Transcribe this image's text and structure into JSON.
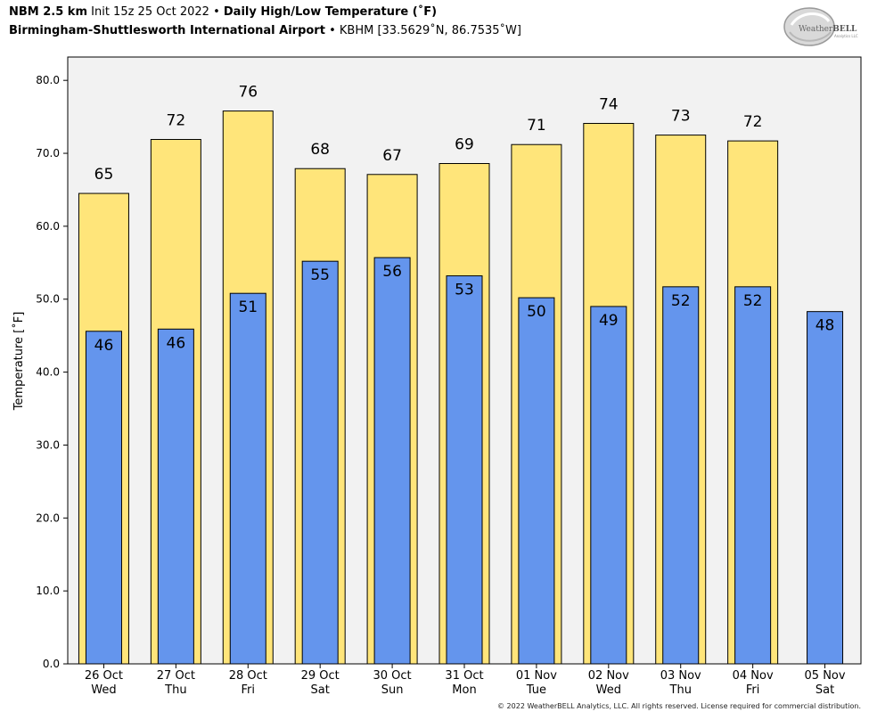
{
  "header": {
    "model": "NBM 2.5 km",
    "init": "Init 15z 25 Oct 2022",
    "separator": "•",
    "product": "Daily High/Low Temperature (˚F)",
    "station_name": "Birmingham-Shuttlesworth International Airport",
    "station_info": "KBHM [33.5629˚N, 86.7535˚W]"
  },
  "logo": {
    "text_a": "Weather",
    "text_b": "BELL",
    "subtext": "Analytics LLC"
  },
  "copyright": "© 2022 WeatherBELL Analytics, LLC. All rights reserved. License required for commercial distribution.",
  "chart_data": {
    "type": "bar",
    "ylabel": "Temperature [˚F]",
    "xlabel": "",
    "ylim": [
      0,
      83.2
    ],
    "yticks": [
      "0.0",
      "10.0",
      "20.0",
      "30.0",
      "40.0",
      "50.0",
      "60.0",
      "70.0",
      "80.0"
    ],
    "legend": "none",
    "grid": false,
    "colors": {
      "high": "#FFE57A",
      "low": "#6495ED",
      "plot_bg": "#F2F2F2",
      "edge": "#000000"
    },
    "categories": [
      {
        "date": "26 Oct",
        "day": "Wed"
      },
      {
        "date": "27 Oct",
        "day": "Thu"
      },
      {
        "date": "28 Oct",
        "day": "Fri"
      },
      {
        "date": "29 Oct",
        "day": "Sat"
      },
      {
        "date": "30 Oct",
        "day": "Sun"
      },
      {
        "date": "31 Oct",
        "day": "Mon"
      },
      {
        "date": "01 Nov",
        "day": "Tue"
      },
      {
        "date": "02 Nov",
        "day": "Wed"
      },
      {
        "date": "03 Nov",
        "day": "Thu"
      },
      {
        "date": "04 Nov",
        "day": "Fri"
      },
      {
        "date": "05 Nov",
        "day": "Sat"
      }
    ],
    "series": [
      {
        "name": "High",
        "values": [
          64.5,
          71.9,
          75.8,
          67.9,
          67.1,
          68.6,
          71.2,
          74.1,
          72.5,
          71.7,
          null
        ],
        "labels": [
          "65",
          "72",
          "76",
          "68",
          "67",
          "69",
          "71",
          "74",
          "73",
          "72",
          ""
        ]
      },
      {
        "name": "Low",
        "values": [
          45.6,
          45.9,
          50.8,
          55.2,
          55.7,
          53.2,
          50.2,
          49.0,
          51.7,
          51.7,
          48.3
        ],
        "labels": [
          "46",
          "46",
          "51",
          "55",
          "56",
          "53",
          "50",
          "49",
          "52",
          "52",
          "48"
        ]
      }
    ]
  }
}
